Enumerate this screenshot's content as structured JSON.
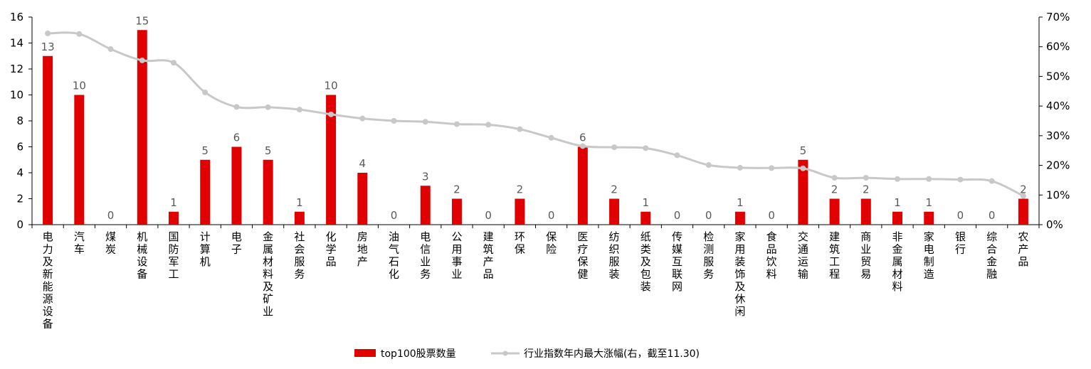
{
  "chart_data": {
    "type": "bar+line",
    "categories": [
      "电力及新能源设备",
      "汽车",
      "煤炭",
      "机械设备",
      "国防军工",
      "计算机",
      "电子",
      "金属材料及矿业",
      "社会服务",
      "化学品",
      "房地产",
      "油气石化",
      "电信业务",
      "公用事业",
      "建筑产品",
      "环保",
      "保险",
      "医疗保健",
      "纺织服装",
      "纸类及包装",
      "传媒互联网",
      "检测服务",
      "家用装饰及休闲",
      "食品饮料",
      "交通运输",
      "建筑工程",
      "商业贸易",
      "非金属材料",
      "家电制造",
      "银行",
      "综合金融",
      "农产品"
    ],
    "series": [
      {
        "name": "top100股票数量",
        "type": "bar",
        "axis": "left",
        "color": "#E00000",
        "values": [
          13,
          10,
          0,
          15,
          1,
          5,
          6,
          5,
          1,
          10,
          4,
          0,
          3,
          2,
          0,
          2,
          0,
          6,
          2,
          1,
          0,
          0,
          1,
          0,
          5,
          2,
          2,
          1,
          1,
          0,
          0,
          2
        ]
      },
      {
        "name": "行业指数年内最大涨幅(右，截至11.30)",
        "type": "line",
        "axis": "right",
        "color": "#C8C8C8",
        "values": [
          64.5,
          64.3,
          59.2,
          55.4,
          54.6,
          44.6,
          39.7,
          39.6,
          38.8,
          37.2,
          35.8,
          35.0,
          34.7,
          33.9,
          33.7,
          32.2,
          29.3,
          26.5,
          26.1,
          25.8,
          23.4,
          20.1,
          19.2,
          19.1,
          19.0,
          15.8,
          15.8,
          15.4,
          15.4,
          15.2,
          14.7,
          9.7
        ]
      }
    ],
    "y_left": {
      "min": 0,
      "max": 16,
      "ticks": [
        "0",
        "2",
        "4",
        "6",
        "8",
        "10",
        "12",
        "14",
        "16"
      ]
    },
    "y_right": {
      "min": 0,
      "max": 70,
      "ticks": [
        "0%",
        "10%",
        "20%",
        "30%",
        "40%",
        "50%",
        "60%",
        "70%"
      ]
    },
    "legend_position": "bottom",
    "grid": false
  }
}
